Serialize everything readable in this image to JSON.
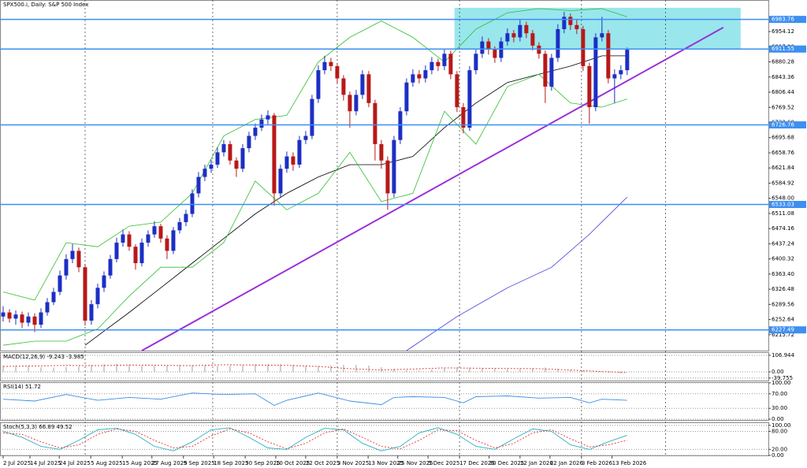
{
  "chart_data": [
    {
      "type": "candlestick",
      "title": "SPX500.i, Daily: S&P 500 Index",
      "xlim": [
        -0.5,
        121.4
      ],
      "ylim": [
        6177,
        7031
      ],
      "up_color": "#1c2fc4",
      "down_color": "#b81818",
      "open": [
        6260,
        6270,
        6255,
        6265,
        6245,
        6260,
        6240,
        6270,
        6295,
        6320,
        6360,
        6400,
        6420,
        6380,
        6250,
        6290,
        6330,
        6360,
        6400,
        6440,
        6460,
        6430,
        6390,
        6440,
        6460,
        6480,
        6450,
        6420,
        6470,
        6490,
        6510,
        6560,
        6600,
        6620,
        6630,
        6660,
        6680,
        6640,
        6620,
        6670,
        6700,
        6720,
        6740,
        6750,
        6560,
        6620,
        6650,
        6630,
        6690,
        6700,
        6790,
        6860,
        6880,
        6870,
        6840,
        6800,
        6760,
        6800,
        6850,
        6780,
        6680,
        6640,
        6560,
        6690,
        6760,
        6830,
        6850,
        6840,
        6860,
        6880,
        6870,
        6900,
        6850,
        6770,
        6720,
        6860,
        6900,
        6930,
        6910,
        6890,
        6930,
        6950,
        6940,
        6970,
        6950,
        6920,
        6900,
        6820,
        6890,
        6960,
        6990,
        6970,
        6960,
        6870,
        6770,
        6940,
        6950,
        6840,
        6850,
        6860
      ],
      "high": [
        6285,
        6278,
        6275,
        6272,
        6270,
        6268,
        6280,
        6305,
        6330,
        6372,
        6412,
        6437,
        6428,
        6388,
        6300,
        6340,
        6370,
        6410,
        6452,
        6472,
        6468,
        6436,
        6450,
        6470,
        6492,
        6486,
        6458,
        6478,
        6500,
        6520,
        6570,
        6612,
        6630,
        6642,
        6672,
        6690,
        6688,
        6648,
        6680,
        6710,
        6730,
        6752,
        6762,
        6756,
        6630,
        6662,
        6660,
        6700,
        6712,
        6800,
        6872,
        6895,
        6890,
        6878,
        6848,
        6808,
        6812,
        6860,
        6858,
        6788,
        6690,
        6650,
        6700,
        6770,
        6840,
        6862,
        6860,
        6872,
        6892,
        6888,
        6912,
        6908,
        6858,
        6780,
        6870,
        6912,
        6942,
        6938,
        6918,
        6940,
        6962,
        6958,
        6985,
        6978,
        6958,
        6928,
        6908,
        6900,
        6972,
        7002,
        6998,
        6985,
        6968,
        6878,
        6950,
        6990,
        6958,
        6862,
        6872,
        6915
      ],
      "low": [
        6248,
        6245,
        6240,
        6232,
        6236,
        6222,
        6232,
        6262,
        6288,
        6312,
        6350,
        6390,
        6368,
        6238,
        6240,
        6280,
        6320,
        6352,
        6392,
        6430,
        6420,
        6374,
        6382,
        6430,
        6452,
        6440,
        6400,
        6412,
        6462,
        6480,
        6502,
        6550,
        6590,
        6610,
        6622,
        6650,
        6630,
        6600,
        6612,
        6660,
        6690,
        6712,
        6728,
        6530,
        6550,
        6610,
        6615,
        6622,
        6680,
        6692,
        6780,
        6850,
        6858,
        6828,
        6786,
        6720,
        6750,
        6790,
        6770,
        6640,
        6620,
        6520,
        6550,
        6680,
        6750,
        6820,
        6828,
        6830,
        6850,
        6858,
        6860,
        6838,
        6758,
        6706,
        6712,
        6850,
        6890,
        6898,
        6878,
        6880,
        6920,
        6928,
        6930,
        6938,
        6908,
        6888,
        6780,
        6810,
        6880,
        6950,
        6958,
        6948,
        6858,
        6730,
        6760,
        6930,
        6828,
        6780,
        6838,
        6848
      ],
      "close": [
        6270,
        6255,
        6265,
        6245,
        6260,
        6240,
        6270,
        6295,
        6320,
        6360,
        6400,
        6420,
        6380,
        6250,
        6290,
        6330,
        6360,
        6400,
        6440,
        6460,
        6430,
        6390,
        6440,
        6460,
        6480,
        6450,
        6420,
        6470,
        6490,
        6510,
        6560,
        6600,
        6620,
        6630,
        6660,
        6680,
        6640,
        6620,
        6670,
        6700,
        6720,
        6740,
        6750,
        6560,
        6620,
        6650,
        6630,
        6690,
        6700,
        6790,
        6860,
        6880,
        6870,
        6840,
        6800,
        6760,
        6800,
        6850,
        6780,
        6680,
        6640,
        6560,
        6690,
        6760,
        6830,
        6850,
        6840,
        6860,
        6880,
        6870,
        6900,
        6850,
        6770,
        6720,
        6860,
        6900,
        6930,
        6910,
        6890,
        6930,
        6950,
        6940,
        6970,
        6950,
        6920,
        6900,
        6820,
        6890,
        6960,
        6990,
        6970,
        6960,
        6870,
        6770,
        6940,
        6950,
        6840,
        6850,
        6860,
        6910
      ],
      "yticks": [
        {
          "value": 6954.12,
          "label": "6954.12"
        },
        {
          "value": 6917.2,
          "label": "6917.20"
        },
        {
          "value": 6880.28,
          "label": "6880.28"
        },
        {
          "value": 6843.36,
          "label": "6843.36"
        },
        {
          "value": 6806.44,
          "label": "6806.44"
        },
        {
          "value": 6769.52,
          "label": "6769.52"
        },
        {
          "value": 6732.6,
          "label": "6732.60"
        },
        {
          "value": 6695.68,
          "label": "6695.68"
        },
        {
          "value": 6658.76,
          "label": "6658.76"
        },
        {
          "value": 6621.84,
          "label": "6621.84"
        },
        {
          "value": 6584.92,
          "label": "6584.92"
        },
        {
          "value": 6548,
          "label": "6548.00"
        },
        {
          "value": 6511.08,
          "label": "6511.08"
        },
        {
          "value": 6474.16,
          "label": "6474.16"
        },
        {
          "value": 6437.24,
          "label": "6437.24"
        },
        {
          "value": 6400.32,
          "label": "6400.32"
        },
        {
          "value": 6363.4,
          "label": "6363.40"
        },
        {
          "value": 6326.48,
          "label": "6326.48"
        },
        {
          "value": 6289.56,
          "label": "6289.56"
        },
        {
          "value": 6252.64,
          "label": "6252.64"
        },
        {
          "value": 6215.72,
          "label": "6215.72"
        }
      ],
      "xticks": [
        {
          "value": 0,
          "label": "2 Jul 2025"
        },
        {
          "value": 4.25,
          "label": "14 Jul 2025"
        },
        {
          "value": 8.9,
          "label": "24 Jul 2025"
        },
        {
          "value": 13.9,
          "label": "5 Aug 2025"
        },
        {
          "value": 18.9,
          "label": "15 Aug 2025"
        },
        {
          "value": 23.6,
          "label": "27 Aug 2025"
        },
        {
          "value": 28.6,
          "label": "9 Sep 2025"
        },
        {
          "value": 33.4,
          "label": "18 Sep 2025"
        },
        {
          "value": 38.4,
          "label": "30 Sep 2025"
        },
        {
          "value": 43.25,
          "label": "10 Oct 2025"
        },
        {
          "value": 48,
          "label": "22 Oct 2025"
        },
        {
          "value": 53,
          "label": "3 Nov 2025"
        },
        {
          "value": 57.9,
          "label": "13 Nov 2025"
        },
        {
          "value": 62.6,
          "label": "25 Nov 2025"
        },
        {
          "value": 67.4,
          "label": "5 Dec 2025"
        },
        {
          "value": 72.4,
          "label": "17 Dec 2025"
        },
        {
          "value": 77.1,
          "label": "30 Dec 2025"
        },
        {
          "value": 82,
          "label": "12 Jan 2026"
        },
        {
          "value": 86.75,
          "label": "22 Jan 2026"
        },
        {
          "value": 91.75,
          "label": "3 Feb 2026"
        },
        {
          "value": 96.6,
          "label": "13 Feb 2026"
        }
      ],
      "vlines": [
        13,
        33.25,
        53,
        72.4,
        91.75,
        105.1
      ],
      "zone": {
        "x": [
          71.6,
          117
        ],
        "values": [
          6911.55,
          7012
        ],
        "color": "#7fe0e8"
      },
      "levels": [
        6983.76,
        6911.55,
        6726.76,
        6533.03,
        6227.49
      ],
      "level_color": "#3d8ff0",
      "lines": [
        {
          "color": "#000000",
          "x": [
            13,
            20,
            25,
            30,
            35,
            40,
            45,
            50,
            55,
            60,
            65,
            70,
            75,
            80,
            85,
            90,
            95,
            99
          ],
          "values": [
            6190,
            6270,
            6330,
            6390,
            6450,
            6510,
            6560,
            6600,
            6630,
            6630,
            6650,
            6720,
            6780,
            6830,
            6850,
            6870,
            6895,
            6895
          ]
        },
        {
          "color": "#2fbf2f",
          "x": [
            0,
            5,
            10,
            15,
            20,
            25,
            30,
            35,
            40,
            45,
            50,
            55,
            60,
            65,
            70,
            75,
            80,
            85,
            90,
            95,
            99
          ],
          "values": [
            6320,
            6300,
            6440,
            6430,
            6480,
            6490,
            6560,
            6700,
            6740,
            6750,
            6880,
            6940,
            6980,
            6940,
            6880,
            6960,
            7000,
            7010,
            7005,
            7010,
            6990
          ]
        },
        {
          "color": "#2fbf2f",
          "x": [
            0,
            5,
            10,
            15,
            20,
            25,
            30,
            35,
            40,
            45,
            50,
            55,
            60,
            65,
            70,
            75,
            80,
            85,
            90,
            95,
            99
          ],
          "values": [
            6190,
            6200,
            6200,
            6230,
            6310,
            6380,
            6380,
            6440,
            6590,
            6520,
            6560,
            6660,
            6540,
            6560,
            6760,
            6680,
            6820,
            6850,
            6780,
            6770,
            6790
          ]
        },
        {
          "color": "#3b3bd9",
          "x": [
            64,
            72,
            80,
            87,
            93,
            99
          ],
          "values": [
            6177,
            6260,
            6330,
            6380,
            6460,
            6551
          ]
        },
        {
          "color": "#9b30d9",
          "x": [
            22,
            114.25
          ],
          "values": [
            6177,
            6964
          ]
        }
      ]
    },
    {
      "type": "macd",
      "title": "MACD(12,26,9) -9.243 -3.985",
      "ylim": [
        -56,
        127
      ],
      "yticks": [
        106.944,
        {
          "value": 0,
          "label": "0.00"
        },
        -39.755
      ],
      "color": "#a0a0a0",
      "x": [
        0,
        2,
        4,
        6,
        8,
        10,
        12,
        14,
        16,
        18,
        20,
        22,
        24,
        26,
        28,
        30,
        32,
        34,
        36,
        38,
        40,
        42,
        44,
        46,
        48,
        50,
        52,
        54,
        56,
        58,
        60,
        62,
        64,
        66,
        68,
        70,
        72,
        74,
        76,
        78,
        80,
        82,
        84,
        86,
        88,
        90,
        92,
        94,
        96,
        98
      ],
      "values": [
        40,
        42,
        38,
        30,
        28,
        32,
        38,
        45,
        50,
        52,
        48,
        40,
        38,
        42,
        45,
        44,
        40,
        38,
        40,
        45,
        50,
        52,
        50,
        46,
        40,
        38,
        42,
        45,
        44,
        40,
        30,
        20,
        12,
        8,
        15,
        25,
        30,
        28,
        25,
        22,
        20,
        22,
        25,
        28,
        20,
        10,
        5,
        0,
        -5,
        -9
      ],
      "signal": {
        "color": "#e03030",
        "x": [
          0,
          5,
          10,
          15,
          20,
          25,
          30,
          35,
          40,
          45,
          50,
          55,
          60,
          65,
          70,
          75,
          80,
          85,
          90,
          95,
          99
        ],
        "values": [
          35,
          38,
          42,
          40,
          44,
          42,
          40,
          46,
          44,
          42,
          35,
          20,
          12,
          18,
          26,
          24,
          22,
          20,
          12,
          2,
          -4
        ]
      }
    },
    {
      "type": "line",
      "title": "RSI(14) 51.72",
      "ylim": [
        -2,
        102
      ],
      "yticks": [
        {
          "value": 100,
          "label": "100.00"
        },
        {
          "value": 70,
          "label": "70.00"
        },
        {
          "value": 30,
          "label": "30.00"
        },
        {
          "value": 0,
          "label": "0.00"
        }
      ],
      "color": "#3a8ee6",
      "x": [
        0,
        5,
        10,
        15,
        20,
        25,
        30,
        35,
        40,
        43,
        45,
        50,
        55,
        60,
        62,
        65,
        70,
        73,
        75,
        80,
        85,
        90,
        93,
        95,
        99
      ],
      "values": [
        55,
        50,
        68,
        52,
        60,
        55,
        72,
        68,
        70,
        38,
        52,
        72,
        50,
        40,
        60,
        62,
        60,
        45,
        62,
        64,
        58,
        60,
        45,
        55,
        52
      ]
    },
    {
      "type": "line",
      "title": "Stoch(5,3,3) 66.89 49.52",
      "ylim": [
        0,
        110
      ],
      "yticks": [
        {
          "value": 100,
          "label": "100.00"
        },
        {
          "value": 80,
          "label": "80.00"
        },
        {
          "value": 20,
          "label": "20.00"
        },
        {
          "value": 0,
          "label": "0.00"
        }
      ],
      "color": "#2ab0c0",
      "x": [
        0,
        3,
        6,
        9,
        12,
        15,
        18,
        21,
        24,
        27,
        30,
        33,
        36,
        39,
        42,
        45,
        48,
        51,
        54,
        57,
        60,
        63,
        66,
        69,
        72,
        75,
        78,
        81,
        84,
        87,
        90,
        93,
        96,
        99
      ],
      "values": [
        80,
        60,
        30,
        20,
        50,
        85,
        90,
        70,
        30,
        15,
        45,
        85,
        92,
        60,
        25,
        20,
        60,
        90,
        85,
        40,
        15,
        30,
        75,
        92,
        70,
        30,
        20,
        55,
        88,
        80,
        35,
        20,
        45,
        67
      ],
      "signal": {
        "color": "#e03030",
        "x": [
          0,
          3,
          6,
          9,
          12,
          15,
          18,
          21,
          24,
          27,
          30,
          33,
          36,
          39,
          42,
          45,
          48,
          51,
          54,
          57,
          60,
          63,
          66,
          69,
          72,
          75,
          78,
          81,
          84,
          87,
          90,
          93,
          96,
          99
        ],
        "values": [
          75,
          70,
          45,
          25,
          35,
          70,
          88,
          80,
          50,
          25,
          30,
          65,
          88,
          75,
          45,
          22,
          40,
          75,
          88,
          60,
          30,
          22,
          50,
          85,
          82,
          50,
          25,
          40,
          75,
          85,
          55,
          28,
          35,
          50
        ]
      }
    }
  ]
}
